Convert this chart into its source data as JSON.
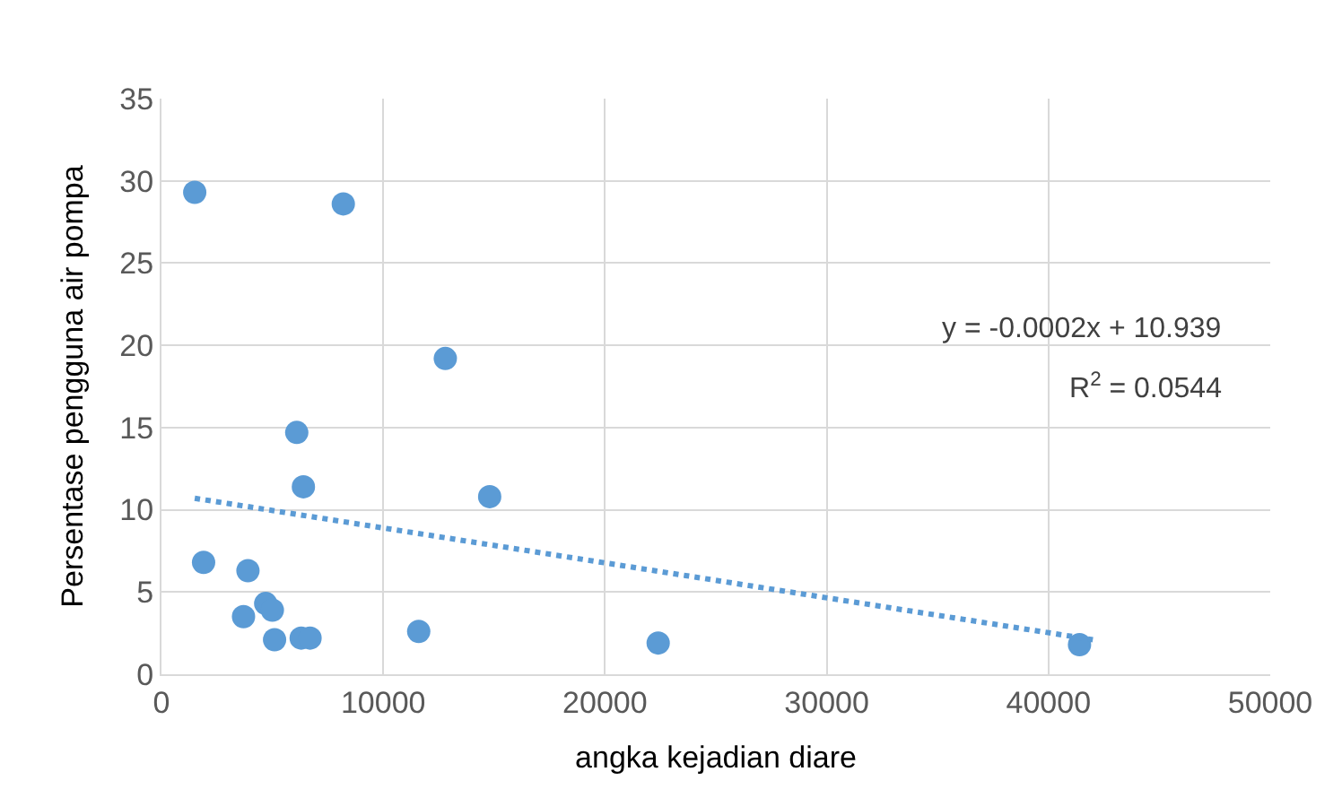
{
  "chart_data": {
    "type": "scatter",
    "xlabel": "angka kejadian diare",
    "ylabel": "Persentase pengguna air pompa",
    "xlim": [
      0,
      50000
    ],
    "xticks": [
      0,
      10000,
      20000,
      30000,
      40000,
      50000
    ],
    "ylim": [
      0,
      35
    ],
    "yticks": [
      0,
      5,
      10,
      15,
      20,
      25,
      30,
      35
    ],
    "grid": true,
    "marker": "circle",
    "series": [
      {
        "color": "#5b9bd5",
        "x": [
          1500,
          8200,
          12800,
          6100,
          6400,
          14800,
          1900,
          3900,
          4700,
          5000,
          3700,
          5100,
          6300,
          6700,
          11600,
          22400,
          41400
        ],
        "values": [
          29.3,
          28.6,
          19.2,
          14.7,
          11.4,
          10.8,
          6.8,
          6.3,
          4.3,
          3.9,
          3.5,
          2.1,
          2.2,
          2.2,
          2.6,
          1.9,
          1.8
        ]
      },
      {
        "type": "line",
        "color": "#5b9bd5",
        "line_style": "dotted",
        "marker": "none",
        "x": [
          1500,
          42000
        ],
        "values": [
          10.7,
          2.1
        ]
      }
    ],
    "annotations": [
      "y = -0.0002x + 10.939",
      "R$^{2}$ = 0.0544"
    ]
  }
}
